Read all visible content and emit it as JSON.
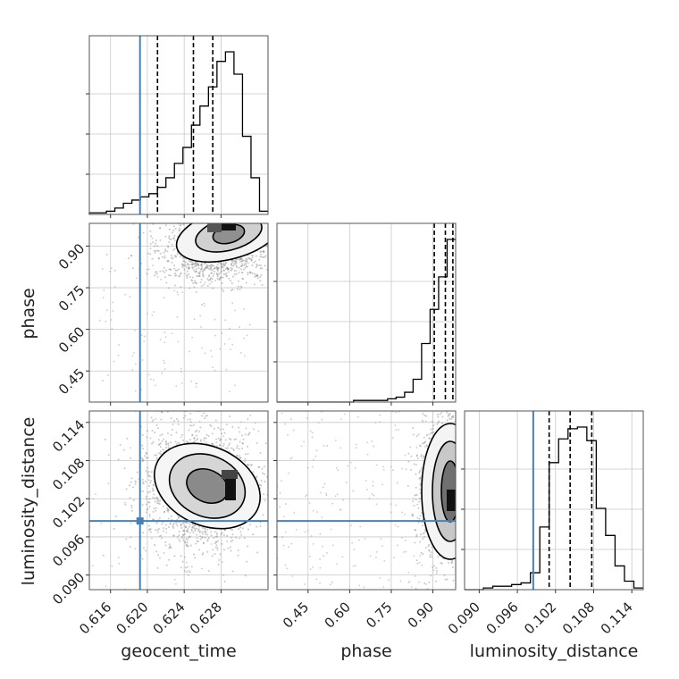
{
  "chart_data": {
    "type": "corner",
    "parameters": [
      "geocent_time",
      "phase",
      "luminosity_distance"
    ],
    "axis_labels": {
      "geocent_time": "geocent_time",
      "phase": "phase",
      "luminosity_distance": "luminosity_distance"
    },
    "ranges": {
      "geocent_time": [
        0.6137,
        0.6331
      ],
      "phase": [
        0.338,
        0.982
      ],
      "luminosity_distance": [
        0.0877,
        0.1158
      ]
    },
    "ticks": {
      "geocent_time": [
        "0.616",
        "0.620",
        "0.624",
        "0.628"
      ],
      "phase": [
        "0.45",
        "0.60",
        "0.75",
        "0.90"
      ],
      "luminosity_distance": [
        "0.090",
        "0.096",
        "0.102",
        "0.108",
        "0.114"
      ]
    },
    "truths": {
      "geocent_time": 0.6192,
      "phase": null,
      "luminosity_distance": 0.0985
    },
    "quantiles": {
      "geocent_time": [
        0.6211,
        0.625,
        0.6271
      ],
      "phase": [
        0.905,
        0.945,
        0.972
      ],
      "luminosity_distance": [
        0.101,
        0.1043,
        0.1077
      ]
    },
    "histograms": {
      "geocent_time": [
        1,
        1,
        2,
        4,
        7,
        9,
        11,
        13,
        17,
        23,
        32,
        42,
        56,
        68,
        80,
        96,
        102,
        88,
        49,
        23,
        2
      ],
      "phase": [
        0,
        0,
        0,
        0,
        0,
        0,
        0,
        0,
        0,
        1,
        1,
        1,
        1,
        2,
        3,
        6,
        14,
        36,
        57,
        77,
        100
      ],
      "luminosity_distance": [
        0,
        0,
        1,
        2,
        2,
        3,
        4,
        10,
        37,
        75,
        89,
        95,
        96,
        88,
        48,
        32,
        14,
        5,
        1
      ]
    },
    "grid": true,
    "legend": "none"
  }
}
